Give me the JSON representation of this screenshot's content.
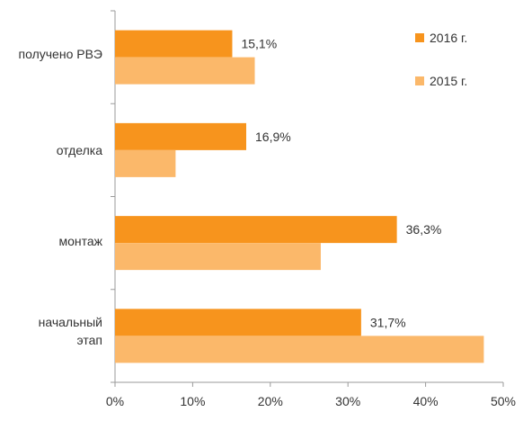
{
  "chart_data": {
    "type": "bar",
    "orientation": "horizontal",
    "categories": [
      "получено РВЭ",
      "отделка",
      "монтаж",
      "начальный\nэтап"
    ],
    "series": [
      {
        "name": "2016 г.",
        "color": "#f7941d",
        "values": [
          15.1,
          16.9,
          36.3,
          31.7
        ],
        "data_labels": [
          "15,1%",
          "16,9%",
          "36,3%",
          "31,7%"
        ]
      },
      {
        "name": "2015 г.",
        "color": "#fbb86a",
        "values": [
          18.0,
          7.8,
          26.5,
          47.5
        ]
      }
    ],
    "xlim": [
      0,
      50
    ],
    "x_ticks": [
      0,
      10,
      20,
      30,
      40,
      50
    ],
    "x_tick_labels": [
      "0%",
      "10%",
      "20%",
      "30%",
      "40%",
      "50%"
    ],
    "xlabel": "",
    "ylabel": "",
    "title": "",
    "grid": false,
    "legend_position": "top-right"
  }
}
